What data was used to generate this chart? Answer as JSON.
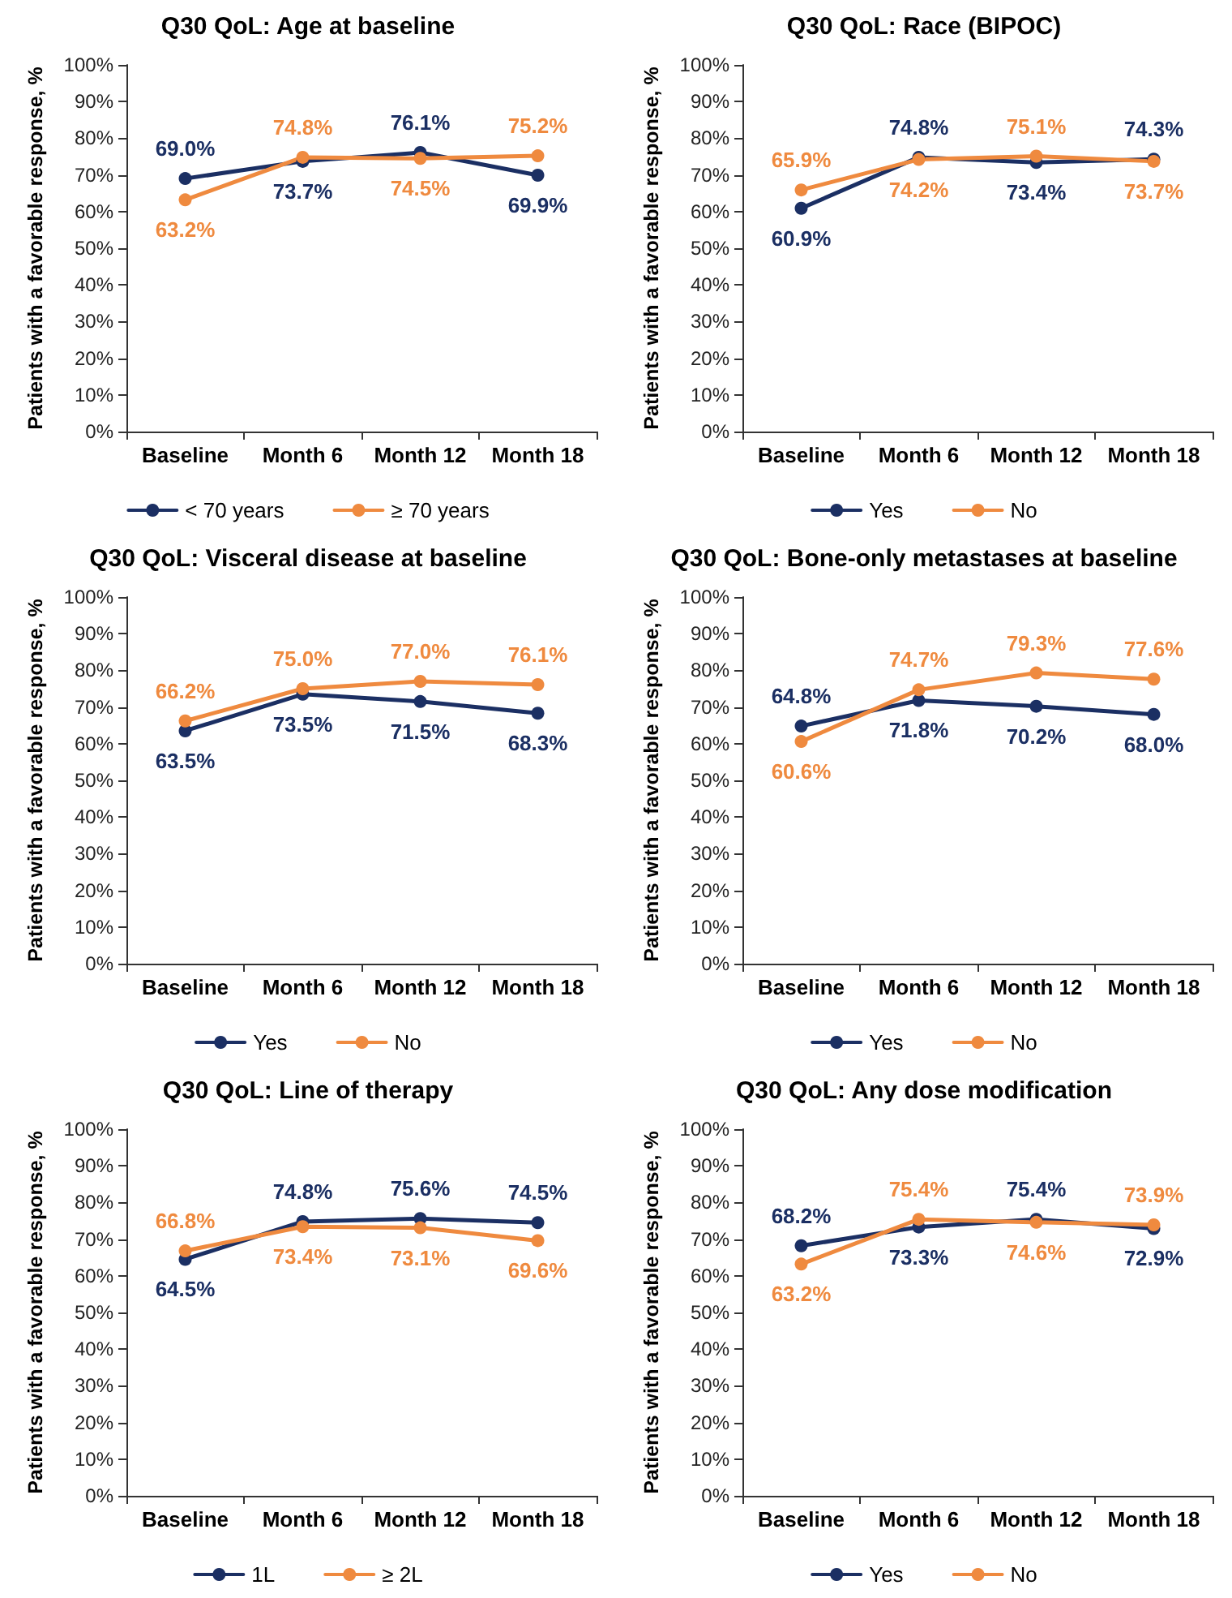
{
  "chart_data": [
    {
      "type": "line",
      "title": "Q30 QoL: Age at baseline",
      "ylabel": "Patients with a favorable response, %",
      "categories": [
        "Baseline",
        "Month 6",
        "Month 12",
        "Month 18"
      ],
      "ylim": [
        0,
        100
      ],
      "yticks": [
        {
          "value": 0,
          "label": "0%"
        },
        {
          "value": 10,
          "label": "10%"
        },
        {
          "value": 20,
          "label": "20%"
        },
        {
          "value": 30,
          "label": "30%"
        },
        {
          "value": 40,
          "label": "40%"
        },
        {
          "value": 50,
          "label": "50%"
        },
        {
          "value": 60,
          "label": "60%"
        },
        {
          "value": 70,
          "label": "70%"
        },
        {
          "value": 80,
          "label": "80%"
        },
        {
          "value": 90,
          "label": "90%"
        },
        {
          "value": 100,
          "label": "100%"
        }
      ],
      "grid": false,
      "legend": "bottom",
      "marker": "circle",
      "line_style": "solid",
      "series": [
        {
          "name": "< 70 years",
          "color": "#1b2f63",
          "values": [
            69.0,
            73.7,
            76.1,
            69.9
          ],
          "value_labels": [
            "69.0%",
            "73.7%",
            "76.1%",
            "69.9%"
          ]
        },
        {
          "name": "≥ 70 years",
          "color": "#ef8a3f",
          "values": [
            63.2,
            74.8,
            74.5,
            75.2
          ],
          "value_labels": [
            "63.2%",
            "74.8%",
            "74.5%",
            "75.2%"
          ]
        }
      ]
    },
    {
      "type": "line",
      "title": "Q30 QoL: Race (BIPOC)",
      "ylabel": "Patients with a favorable response, %",
      "categories": [
        "Baseline",
        "Month 6",
        "Month 12",
        "Month 18"
      ],
      "ylim": [
        0,
        100
      ],
      "yticks": [
        {
          "value": 0,
          "label": "0%"
        },
        {
          "value": 10,
          "label": "10%"
        },
        {
          "value": 20,
          "label": "20%"
        },
        {
          "value": 30,
          "label": "30%"
        },
        {
          "value": 40,
          "label": "40%"
        },
        {
          "value": 50,
          "label": "50%"
        },
        {
          "value": 60,
          "label": "60%"
        },
        {
          "value": 70,
          "label": "70%"
        },
        {
          "value": 80,
          "label": "80%"
        },
        {
          "value": 90,
          "label": "90%"
        },
        {
          "value": 100,
          "label": "100%"
        }
      ],
      "grid": false,
      "legend": "bottom",
      "marker": "circle",
      "line_style": "solid",
      "series": [
        {
          "name": "Yes",
          "color": "#1b2f63",
          "values": [
            60.9,
            74.8,
            73.4,
            74.3
          ],
          "value_labels": [
            "60.9%",
            "74.8%",
            "73.4%",
            "74.3%"
          ]
        },
        {
          "name": "No",
          "color": "#ef8a3f",
          "values": [
            65.9,
            74.2,
            75.1,
            73.7
          ],
          "value_labels": [
            "65.9%",
            "74.2%",
            "75.1%",
            "73.7%"
          ]
        }
      ]
    },
    {
      "type": "line",
      "title": "Q30 QoL: Visceral disease at baseline",
      "ylabel": "Patients with a favorable response, %",
      "categories": [
        "Baseline",
        "Month 6",
        "Month 12",
        "Month 18"
      ],
      "ylim": [
        0,
        100
      ],
      "yticks": [
        {
          "value": 0,
          "label": "0%"
        },
        {
          "value": 10,
          "label": "10%"
        },
        {
          "value": 20,
          "label": "20%"
        },
        {
          "value": 30,
          "label": "30%"
        },
        {
          "value": 40,
          "label": "40%"
        },
        {
          "value": 50,
          "label": "50%"
        },
        {
          "value": 60,
          "label": "60%"
        },
        {
          "value": 70,
          "label": "70%"
        },
        {
          "value": 80,
          "label": "80%"
        },
        {
          "value": 90,
          "label": "90%"
        },
        {
          "value": 100,
          "label": "100%"
        }
      ],
      "grid": false,
      "legend": "bottom",
      "marker": "circle",
      "line_style": "solid",
      "series": [
        {
          "name": "Yes",
          "color": "#1b2f63",
          "values": [
            63.5,
            73.5,
            71.5,
            68.3
          ],
          "value_labels": [
            "63.5%",
            "73.5%",
            "71.5%",
            "68.3%"
          ]
        },
        {
          "name": "No",
          "color": "#ef8a3f",
          "values": [
            66.2,
            75.0,
            77.0,
            76.1
          ],
          "value_labels": [
            "66.2%",
            "75.0%",
            "77.0%",
            "76.1%"
          ]
        }
      ]
    },
    {
      "type": "line",
      "title": "Q30 QoL: Bone-only metastases at baseline",
      "ylabel": "Patients with a favorable response, %",
      "categories": [
        "Baseline",
        "Month 6",
        "Month 12",
        "Month 18"
      ],
      "ylim": [
        0,
        100
      ],
      "yticks": [
        {
          "value": 0,
          "label": "0%"
        },
        {
          "value": 10,
          "label": "10%"
        },
        {
          "value": 20,
          "label": "20%"
        },
        {
          "value": 30,
          "label": "30%"
        },
        {
          "value": 40,
          "label": "40%"
        },
        {
          "value": 50,
          "label": "50%"
        },
        {
          "value": 60,
          "label": "60%"
        },
        {
          "value": 70,
          "label": "70%"
        },
        {
          "value": 80,
          "label": "80%"
        },
        {
          "value": 90,
          "label": "90%"
        },
        {
          "value": 100,
          "label": "100%"
        }
      ],
      "grid": false,
      "legend": "bottom",
      "marker": "circle",
      "line_style": "solid",
      "series": [
        {
          "name": "Yes",
          "color": "#1b2f63",
          "values": [
            64.8,
            71.8,
            70.2,
            68.0
          ],
          "value_labels": [
            "64.8%",
            "71.8%",
            "70.2%",
            "68.0%"
          ]
        },
        {
          "name": "No",
          "color": "#ef8a3f",
          "values": [
            60.6,
            74.7,
            79.3,
            77.6
          ],
          "value_labels": [
            "60.6%",
            "74.7%",
            "79.3%",
            "77.6%"
          ]
        }
      ]
    },
    {
      "type": "line",
      "title": "Q30 QoL: Line of therapy",
      "ylabel": "Patients with a favorable response, %",
      "categories": [
        "Baseline",
        "Month 6",
        "Month 12",
        "Month 18"
      ],
      "ylim": [
        0,
        100
      ],
      "yticks": [
        {
          "value": 0,
          "label": "0%"
        },
        {
          "value": 10,
          "label": "10%"
        },
        {
          "value": 20,
          "label": "20%"
        },
        {
          "value": 30,
          "label": "30%"
        },
        {
          "value": 40,
          "label": "40%"
        },
        {
          "value": 50,
          "label": "50%"
        },
        {
          "value": 60,
          "label": "60%"
        },
        {
          "value": 70,
          "label": "70%"
        },
        {
          "value": 80,
          "label": "80%"
        },
        {
          "value": 90,
          "label": "90%"
        },
        {
          "value": 100,
          "label": "100%"
        }
      ],
      "grid": false,
      "legend": "bottom",
      "marker": "circle",
      "line_style": "solid",
      "series": [
        {
          "name": "1L",
          "color": "#1b2f63",
          "values": [
            64.5,
            74.8,
            75.6,
            74.5
          ],
          "value_labels": [
            "64.5%",
            "74.8%",
            "75.6%",
            "74.5%"
          ]
        },
        {
          "name": "≥ 2L",
          "color": "#ef8a3f",
          "values": [
            66.8,
            73.4,
            73.1,
            69.6
          ],
          "value_labels": [
            "66.8%",
            "73.4%",
            "73.1%",
            "69.6%"
          ]
        }
      ]
    },
    {
      "type": "line",
      "title": "Q30 QoL: Any dose modification",
      "ylabel": "Patients with a favorable response, %",
      "categories": [
        "Baseline",
        "Month 6",
        "Month 12",
        "Month 18"
      ],
      "ylim": [
        0,
        100
      ],
      "yticks": [
        {
          "value": 0,
          "label": "0%"
        },
        {
          "value": 10,
          "label": "10%"
        },
        {
          "value": 20,
          "label": "20%"
        },
        {
          "value": 30,
          "label": "30%"
        },
        {
          "value": 40,
          "label": "40%"
        },
        {
          "value": 50,
          "label": "50%"
        },
        {
          "value": 60,
          "label": "60%"
        },
        {
          "value": 70,
          "label": "70%"
        },
        {
          "value": 80,
          "label": "80%"
        },
        {
          "value": 90,
          "label": "90%"
        },
        {
          "value": 100,
          "label": "100%"
        }
      ],
      "grid": false,
      "legend": "bottom",
      "marker": "circle",
      "line_style": "solid",
      "series": [
        {
          "name": "Yes",
          "color": "#1b2f63",
          "values": [
            68.2,
            73.3,
            75.4,
            72.9
          ],
          "value_labels": [
            "68.2%",
            "73.3%",
            "75.4%",
            "72.9%"
          ]
        },
        {
          "name": "No",
          "color": "#ef8a3f",
          "values": [
            63.2,
            75.4,
            74.6,
            73.9
          ],
          "value_labels": [
            "63.2%",
            "75.4%",
            "74.6%",
            "73.9%"
          ]
        }
      ]
    }
  ]
}
